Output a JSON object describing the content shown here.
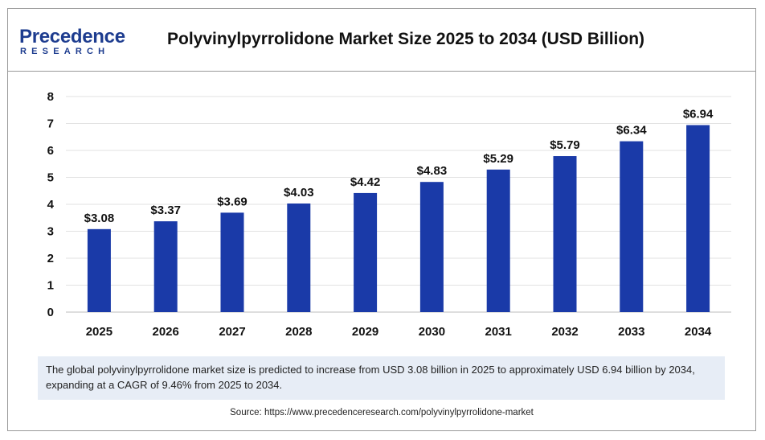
{
  "brand": {
    "name": "Precedence",
    "sub": "RESEARCH"
  },
  "chart_data": {
    "type": "bar",
    "title": "Polyvinylpyrrolidone Market Size 2025 to 2034 (USD Billion)",
    "categories": [
      "2025",
      "2026",
      "2027",
      "2028",
      "2029",
      "2030",
      "2031",
      "2032",
      "2033",
      "2034"
    ],
    "values": [
      3.08,
      3.37,
      3.69,
      4.03,
      4.42,
      4.83,
      5.29,
      5.79,
      6.34,
      6.94
    ],
    "data_labels": [
      "$3.08",
      "$3.37",
      "$3.69",
      "$4.03",
      "$4.42",
      "$4.83",
      "$5.29",
      "$5.79",
      "$6.34",
      "$6.94"
    ],
    "y_ticks": [
      "0",
      "1",
      "2",
      "3",
      "4",
      "5",
      "6",
      "7",
      "8"
    ],
    "ylim": [
      0,
      8
    ],
    "grid": true,
    "legend": "none",
    "bar_color": "#1a3aa8"
  },
  "summary": "The global polyvinylpyrrolidone market size is predicted to increase from USD 3.08 billion in 2025 to approximately USD 6.94 billion by 2034, expanding at a CAGR of 9.46% from 2025 to 2034.",
  "source": "Source: https://www.precedenceresearch.com/polyvinylpyrrolidone-market"
}
